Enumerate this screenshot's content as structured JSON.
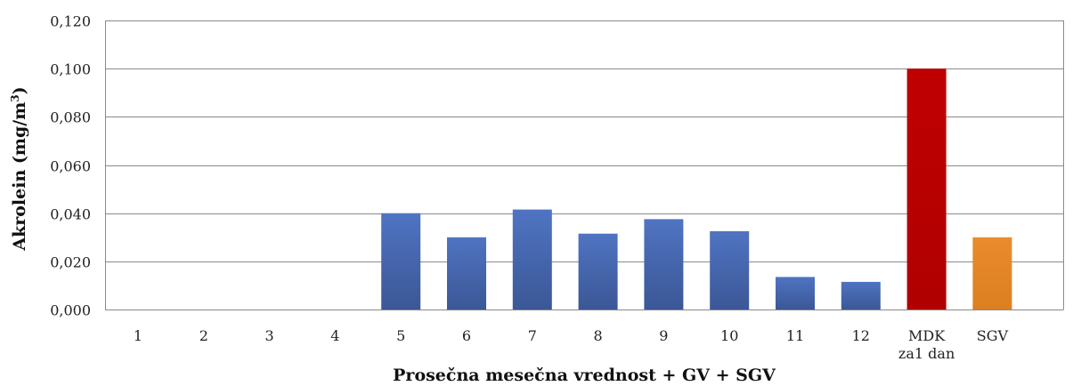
{
  "chart_data": {
    "type": "bar",
    "title": "",
    "xlabel": "Prosečna mesečna vrednost + GV + SGV",
    "ylabel": "Akrolein (mg/m",
    "ylabel_superscript": "3",
    "ylabel_close": ")",
    "ylim": [
      0,
      0.12
    ],
    "yticks": [
      "0,000",
      "0,020",
      "0,040",
      "0,060",
      "0,080",
      "0,100",
      "0,120"
    ],
    "ytick_values": [
      0,
      0.02,
      0.04,
      0.06,
      0.08,
      0.1,
      0.12
    ],
    "grid": true,
    "legend": "none",
    "categories": [
      [
        "1"
      ],
      [
        "2"
      ],
      [
        "3"
      ],
      [
        "4"
      ],
      [
        "5"
      ],
      [
        "6"
      ],
      [
        "7"
      ],
      [
        "8"
      ],
      [
        "9"
      ],
      [
        "10"
      ],
      [
        "11"
      ],
      [
        "12"
      ],
      [
        "MDK",
        "za1 dan"
      ],
      [
        "SGV"
      ]
    ],
    "values": [
      0,
      0,
      0,
      0,
      0.04,
      0.03,
      0.0415,
      0.0315,
      0.0375,
      0.0325,
      0.0135,
      0.0115,
      0.1,
      0.03
    ],
    "colors": {
      "monthly": "#4a6db8",
      "monthly_dark": "#3a5698",
      "mdk": "#c00000",
      "sgv": "#e6872a"
    },
    "bar_color_keys": [
      "monthly",
      "monthly",
      "monthly",
      "monthly",
      "monthly",
      "monthly",
      "monthly",
      "monthly",
      "monthly",
      "monthly",
      "monthly",
      "monthly",
      "mdk",
      "sgv"
    ]
  }
}
